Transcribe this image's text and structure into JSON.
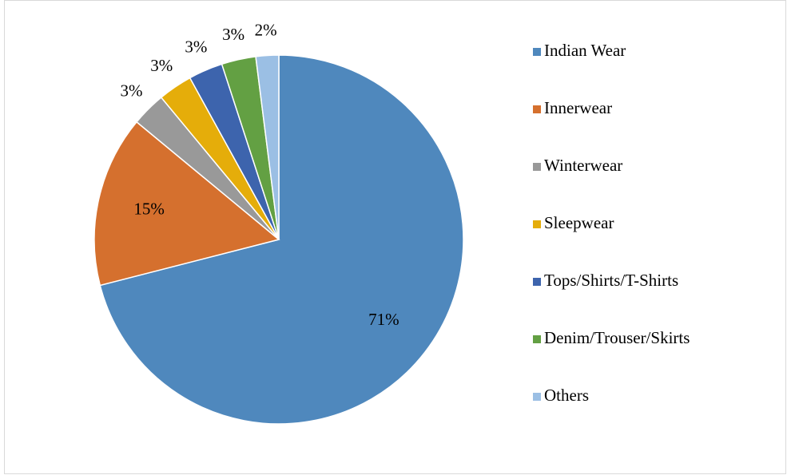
{
  "chart_data": {
    "type": "pie",
    "categories": [
      "Indian Wear",
      "Innerwear",
      "Winterwear",
      "Sleepwear",
      "Tops/Shirts/T-Shirts",
      "Denim/Trouser/Skirts",
      "Others"
    ],
    "values": [
      71,
      15,
      3,
      3,
      3,
      3,
      2
    ],
    "value_labels": [
      "71%",
      "15%",
      "3%",
      "3%",
      "3%",
      "3%",
      "2%"
    ],
    "colors": [
      "#4f88bd",
      "#d5702e",
      "#999999",
      "#e5ad0a",
      "#3d64ad",
      "#63a043",
      "#9bbfe4"
    ],
    "legend": "right"
  }
}
